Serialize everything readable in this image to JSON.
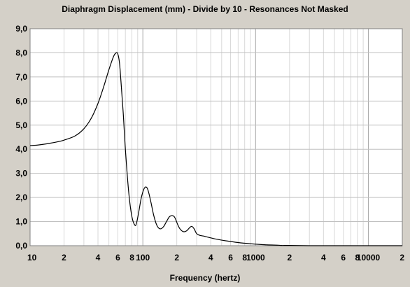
{
  "chart_data": {
    "type": "line",
    "title": "Diaphragm Displacement (mm) - Divide by 10 - Resonances Not Masked",
    "xlabel": "Frequency (hertz)",
    "ylabel": "",
    "x_scale": "log",
    "xlim": [
      10,
      20000
    ],
    "ylim": [
      0,
      9
    ],
    "grid": true,
    "yticks": [
      {
        "v": 0,
        "label": "0,0"
      },
      {
        "v": 1,
        "label": "1,0"
      },
      {
        "v": 2,
        "label": "2,0"
      },
      {
        "v": 3,
        "label": "3,0"
      },
      {
        "v": 4,
        "label": "4,0"
      },
      {
        "v": 5,
        "label": "5,0"
      },
      {
        "v": 6,
        "label": "6,0"
      },
      {
        "v": 7,
        "label": "7,0"
      },
      {
        "v": 8,
        "label": "8,0"
      },
      {
        "v": 9,
        "label": "9,0"
      }
    ],
    "xticks": [
      {
        "v": 10,
        "label": "10"
      },
      {
        "v": 20,
        "label": "2"
      },
      {
        "v": 40,
        "label": "4"
      },
      {
        "v": 60,
        "label": "6"
      },
      {
        "v": 80,
        "label": "8"
      },
      {
        "v": 100,
        "label": "100"
      },
      {
        "v": 200,
        "label": "2"
      },
      {
        "v": 400,
        "label": "4"
      },
      {
        "v": 600,
        "label": "6"
      },
      {
        "v": 800,
        "label": "8"
      },
      {
        "v": 1000,
        "label": "1000"
      },
      {
        "v": 2000,
        "label": "2"
      },
      {
        "v": 4000,
        "label": "4"
      },
      {
        "v": 6000,
        "label": "6"
      },
      {
        "v": 8000,
        "label": "8"
      },
      {
        "v": 10000,
        "label": "10000"
      },
      {
        "v": 20000,
        "label": "2"
      }
    ],
    "series": [
      {
        "color": "#000000",
        "x": [
          10,
          12,
          15,
          18,
          20,
          25,
          30,
          35,
          40,
          45,
          50,
          55,
          58,
          60,
          62,
          64,
          67,
          70,
          75,
          80,
          85,
          88,
          92,
          97,
          103,
          108,
          112,
          118,
          125,
          133,
          142,
          152,
          162,
          172,
          182,
          190,
          197,
          205,
          215,
          230,
          245,
          260,
          272,
          285,
          300,
          320,
          345,
          380,
          450,
          550,
          700,
          900,
          1200,
          1600,
          1700,
          2000,
          3000,
          5000,
          10000,
          20000
        ],
        "y": [
          4.15,
          4.18,
          4.25,
          4.32,
          4.38,
          4.55,
          4.85,
          5.3,
          5.9,
          6.6,
          7.3,
          7.85,
          8.0,
          7.95,
          7.6,
          6.8,
          5.5,
          4.0,
          2.2,
          1.2,
          0.85,
          0.95,
          1.4,
          2.0,
          2.38,
          2.42,
          2.25,
          1.8,
          1.25,
          0.85,
          0.7,
          0.78,
          1.0,
          1.2,
          1.25,
          1.2,
          1.05,
          0.85,
          0.68,
          0.58,
          0.62,
          0.75,
          0.8,
          0.7,
          0.5,
          0.43,
          0.4,
          0.35,
          0.27,
          0.2,
          0.13,
          0.08,
          0.04,
          0.02,
          0.01,
          0.01,
          0.0,
          0.0,
          0.0,
          0.0
        ]
      }
    ]
  }
}
